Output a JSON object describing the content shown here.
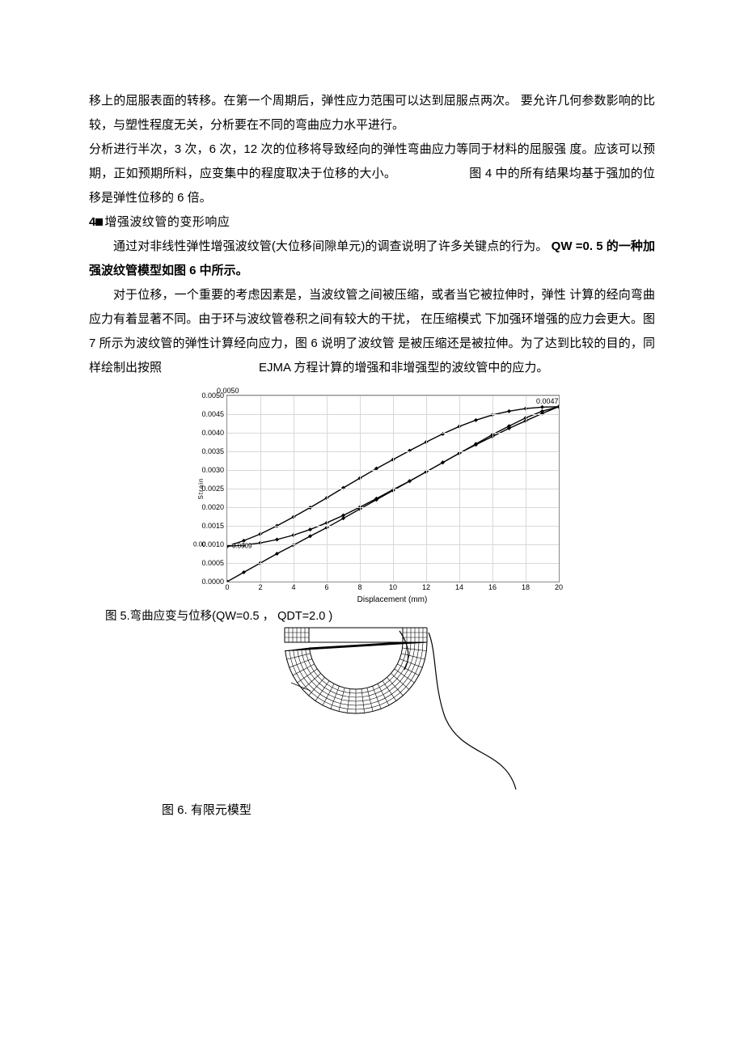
{
  "paragraphs": {
    "p1a": "移上的屈服表面的转移。在第一个周期后，弹性应力范围可以达到屈服点两次。",
    "p1b": "要允许几何参数影响的比较，与塑性程度无关，分析要在不同的弯曲应力水平进行。",
    "p2a": "分析进行半次，3 次，6 次，12 次的位移将导致经向的弹性弯曲应力等同于材料的屈服强 度。应该可以预期，正如预期所料，应变集中的程度取决于位移的大小。",
    "p2b": "图 4 中的所有结果均基于强加的位移是弹性位移的 6 倍。",
    "sec4_num": "4",
    "sec4_title": "增强波纹管的变形响应",
    "p3a": "通过对非线性弹性增强波纹管(大位移间隙单元)的调查说明了许多关键点的行为。",
    "p3b": "QW =0. 5 的一种加强波纹管模型如图 6 中所示。",
    "p4a": "对于位移，一个重要的考虑因素是，当波纹管之间被压缩，或者当它被拉伸时，弹性 计算的经向弯曲应力有着显著不同。由于环与波纹管卷积之间有较大的干扰，",
    "p4b": "在压缩模式 下加强环增强的应力会更大。图 7 所示为波纹管的弹性计算经向应力，图 6 说明了波纹管 是被压缩还是被拉伸。为了达到比较的目的，同样绘制出按照",
    "p4c": "EJMA 方程计算的增强和非增强型的波纹管中的应力。"
  },
  "fig5": {
    "caption": "图 5.弯曲应变与位移(QW=0.5 ， QDT=2.0 )",
    "title": "0.0050",
    "xlabel": "Displacement (mm)",
    "ylabel_raw": "Strain",
    "axes": {
      "xlim": [
        0,
        20
      ],
      "ylim": [
        0,
        0.005
      ],
      "xticks": [
        0,
        2,
        4,
        6,
        8,
        10,
        12,
        14,
        16,
        18,
        20
      ],
      "yticks": [
        0.0,
        0.0005,
        0.001,
        0.0015,
        0.002,
        0.0025,
        0.003,
        0.0035,
        0.004,
        0.0045,
        0.005
      ],
      "ytick_labels": [
        "0.0000",
        "0.0005",
        "0.0010",
        "0.0015",
        "0.0020",
        "0.0025",
        "0.0030",
        "0.0035",
        "0.0040",
        "0.0045",
        "0.0050"
      ],
      "ytick_extra_left": {
        "pos": 0.001,
        "text": "0.00"
      },
      "ytick_extra_indent": {
        "pos": 0.00095,
        "text": "0.0009"
      },
      "grid_color": "#d8d8d8",
      "border_color": "#8a8a8a",
      "tick_fontsize": 9,
      "label_fontsize": 10
    },
    "style": {
      "line_color": "#000000",
      "line_width": 1.4,
      "marker": "diamond",
      "marker_size": 5,
      "marker_color": "#000000",
      "background": "#ffffff"
    },
    "end_point_label": "0.0047",
    "series": {
      "lower": [
        [
          0,
          0.0
        ],
        [
          1,
          0.00025
        ],
        [
          2,
          0.0005
        ],
        [
          3,
          0.00075
        ],
        [
          4,
          0.00098
        ],
        [
          5,
          0.00122
        ],
        [
          6,
          0.00145
        ],
        [
          7,
          0.0017
        ],
        [
          8,
          0.00195
        ],
        [
          9,
          0.0022
        ],
        [
          10,
          0.00245
        ],
        [
          11,
          0.0027
        ],
        [
          12,
          0.00295
        ],
        [
          13,
          0.0032
        ],
        [
          14,
          0.00345
        ],
        [
          15,
          0.0037
        ],
        [
          16,
          0.00395
        ],
        [
          17,
          0.00418
        ],
        [
          18,
          0.0044
        ],
        [
          19,
          0.00458
        ],
        [
          20,
          0.0047
        ]
      ],
      "upper": [
        [
          20,
          0.0047
        ],
        [
          19,
          0.00452
        ],
        [
          18,
          0.00432
        ],
        [
          17,
          0.00412
        ],
        [
          16,
          0.0039
        ],
        [
          15,
          0.00368
        ],
        [
          14,
          0.00345
        ],
        [
          13,
          0.0032
        ],
        [
          12,
          0.00295
        ],
        [
          11,
          0.0027
        ],
        [
          10,
          0.00247
        ],
        [
          9,
          0.00223
        ],
        [
          8,
          0.002
        ],
        [
          7,
          0.00178
        ],
        [
          6,
          0.00158
        ],
        [
          5,
          0.0014
        ],
        [
          4,
          0.00125
        ],
        [
          3,
          0.00113
        ],
        [
          2,
          0.00104
        ],
        [
          1,
          0.00098
        ],
        [
          0,
          0.00095
        ]
      ],
      "upper_branch2_start": [
        [
          0,
          0.00095
        ],
        [
          1,
          0.0011
        ],
        [
          2,
          0.00128
        ],
        [
          3,
          0.0015
        ],
        [
          4,
          0.00174
        ],
        [
          5,
          0.00199
        ],
        [
          6,
          0.00225
        ],
        [
          7,
          0.00252
        ],
        [
          8,
          0.00278
        ],
        [
          9,
          0.00304
        ],
        [
          10,
          0.00328
        ],
        [
          11,
          0.00352
        ],
        [
          12,
          0.00375
        ],
        [
          13,
          0.00397
        ],
        [
          14,
          0.00417
        ],
        [
          15,
          0.00434
        ],
        [
          16,
          0.00448
        ],
        [
          17,
          0.00458
        ],
        [
          18,
          0.00465
        ],
        [
          19,
          0.00469
        ],
        [
          20,
          0.0047
        ]
      ]
    }
  },
  "fig6": {
    "caption": "图 6. 有限元模型",
    "style": {
      "line_color": "#000000",
      "grid_line_width": 0.6,
      "outline_width": 1.2,
      "background": "#ffffff"
    }
  }
}
